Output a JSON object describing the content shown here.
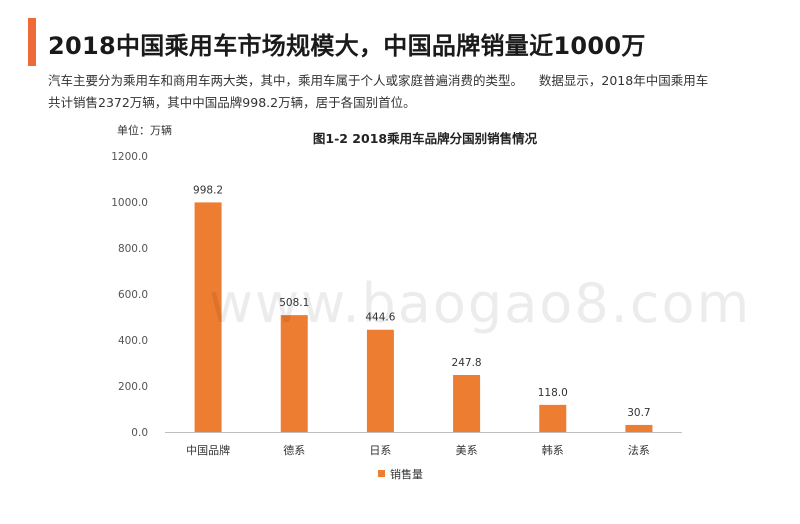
{
  "header": {
    "title": "2018中国乘用车市场规模大，中国品牌销量近1000万",
    "accent_color": "#ee6a3a"
  },
  "description": {
    "line1": "汽车主要分为乘用车和商用车两大类，其中，乘用车属于个人或家庭普遍消费的类型。    数据显示，2018年中国乘用车",
    "line2": "共计销售2372万辆，其中中国品牌998.2万辆，居于各国别首位。"
  },
  "watermark": "www.baogao8.com",
  "chart_data": {
    "type": "bar",
    "title": "图1-2 2018乘用车品牌分国别销售情况",
    "unit_label": "单位：万辆",
    "categories": [
      "中国品牌",
      "德系",
      "日系",
      "美系",
      "韩系",
      "法系"
    ],
    "series": [
      {
        "name": "销售量",
        "values": [
          998.2,
          508.1,
          444.6,
          247.8,
          118.0,
          30.7
        ],
        "color": "#ed7d31"
      }
    ],
    "value_labels": [
      "998.2",
      "508.1",
      "444.6",
      "247.8",
      "118.0",
      "30.7"
    ],
    "ylim": [
      0,
      1200
    ],
    "yticks": [
      "0.0",
      "200.0",
      "400.0",
      "600.0",
      "800.0",
      "1000.0",
      "1200.0"
    ],
    "grid": false,
    "legend_position": "bottom"
  }
}
